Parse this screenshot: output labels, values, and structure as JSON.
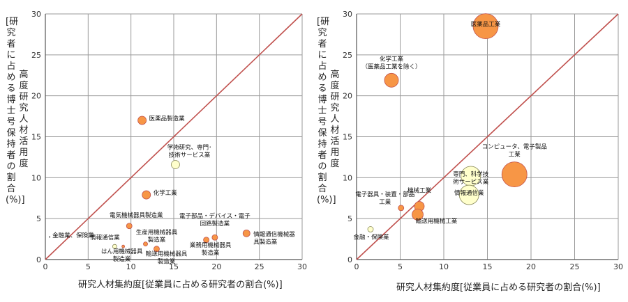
{
  "chart_data": [
    {
      "type": "scatter",
      "xlabel": "研究人材集約度[従業員に占める研究者の割合(%)]",
      "ylabel_main": "高度研究人材活用度",
      "ylabel_bracket": "[研究者に占める博士号保持者の割合(%)]",
      "xlim": [
        0,
        30
      ],
      "ylim": [
        0,
        30
      ],
      "xticks": [
        "0",
        "5",
        "10",
        "15",
        "20",
        "25",
        "30"
      ],
      "yticks": [
        "0",
        "5",
        "10",
        "15",
        "20",
        "25",
        "30"
      ],
      "grid": true,
      "diagonal_line_color": "#c0504d",
      "points": [
        {
          "label": "医薬品製造業",
          "x": 11.3,
          "y": 17.0,
          "color": "#f79646"
        },
        {
          "label": "学術研究、専門･技術サービス業",
          "x": 15.2,
          "y": 11.6,
          "color": "#ffffcc"
        },
        {
          "label": "化学工業",
          "x": 11.8,
          "y": 7.9,
          "color": "#f79646"
        },
        {
          "label": "電気機械器具製造業",
          "x": 9.8,
          "y": 4.1,
          "color": "#f79646"
        },
        {
          "label": "生産用機械器具製造業",
          "x": 11.7,
          "y": 1.9,
          "color": "#f79646"
        },
        {
          "label": "情報通信業",
          "x": 8.1,
          "y": 1.6,
          "color": "#ffffcc"
        },
        {
          "label": "はん用機械器具製造業",
          "x": 9.1,
          "y": 1.6,
          "color": "#f79646"
        },
        {
          "label": "輸送用機械器具製造業",
          "x": 13.0,
          "y": 1.3,
          "color": "#f79646"
        },
        {
          "label": "電子部品・デバイス・電子回路製造業",
          "x": 19.8,
          "y": 2.7,
          "color": "#f79646"
        },
        {
          "label": "業務用機械器具製造業",
          "x": 18.8,
          "y": 2.4,
          "color": "#f79646"
        },
        {
          "label": "情報通信機械器具製造業",
          "x": 23.5,
          "y": 3.2,
          "color": "#f79646"
        },
        {
          "label": "金融業、保険業",
          "x": 0.5,
          "y": 2.7,
          "color": "#ffffcc"
        }
      ]
    },
    {
      "type": "scatter",
      "xlabel": "研究人材集約度[従業員に占める研究者の割合(%)]",
      "ylabel_main": "高度研究人材活用度",
      "ylabel_bracket": "[研究者に占める博士号保持者の割合(%)]",
      "xlim": [
        0,
        30
      ],
      "ylim": [
        0,
        30
      ],
      "xticks": [
        "0",
        "5",
        "10",
        "15",
        "20",
        "25",
        "30"
      ],
      "yticks": [
        "0",
        "5",
        "10",
        "15",
        "20",
        "25",
        "30"
      ],
      "grid": true,
      "diagonal_line_color": "#c0504d",
      "points": [
        {
          "label": "医薬品工業",
          "x": 14.8,
          "y": 28.5,
          "color": "#f79646"
        },
        {
          "label": "化学工業\n（医薬品工業を除く）",
          "x": 4.0,
          "y": 21.9,
          "color": "#f79646"
        },
        {
          "label": "コンピュータ、電子製品\n工業",
          "x": 18.1,
          "y": 10.4,
          "color": "#f79646"
        },
        {
          "label": "専門、科学技\n術サービス業",
          "x": 13.1,
          "y": 10.2,
          "color": "#ffffcc"
        },
        {
          "label": "情報通信業",
          "x": 12.9,
          "y": 7.9,
          "color": "#ffffcc"
        },
        {
          "label": "機械工業",
          "x": 7.2,
          "y": 6.5,
          "color": "#f79646"
        },
        {
          "label": "電子器具・装置・部品\n工業",
          "x": 5.1,
          "y": 6.3,
          "color": "#f79646"
        },
        {
          "label": "輸送用機械工業",
          "x": 7.0,
          "y": 5.5,
          "color": "#f79646"
        },
        {
          "label": "金融・保険業",
          "x": 1.6,
          "y": 3.7,
          "color": "#ffffcc"
        }
      ]
    }
  ]
}
